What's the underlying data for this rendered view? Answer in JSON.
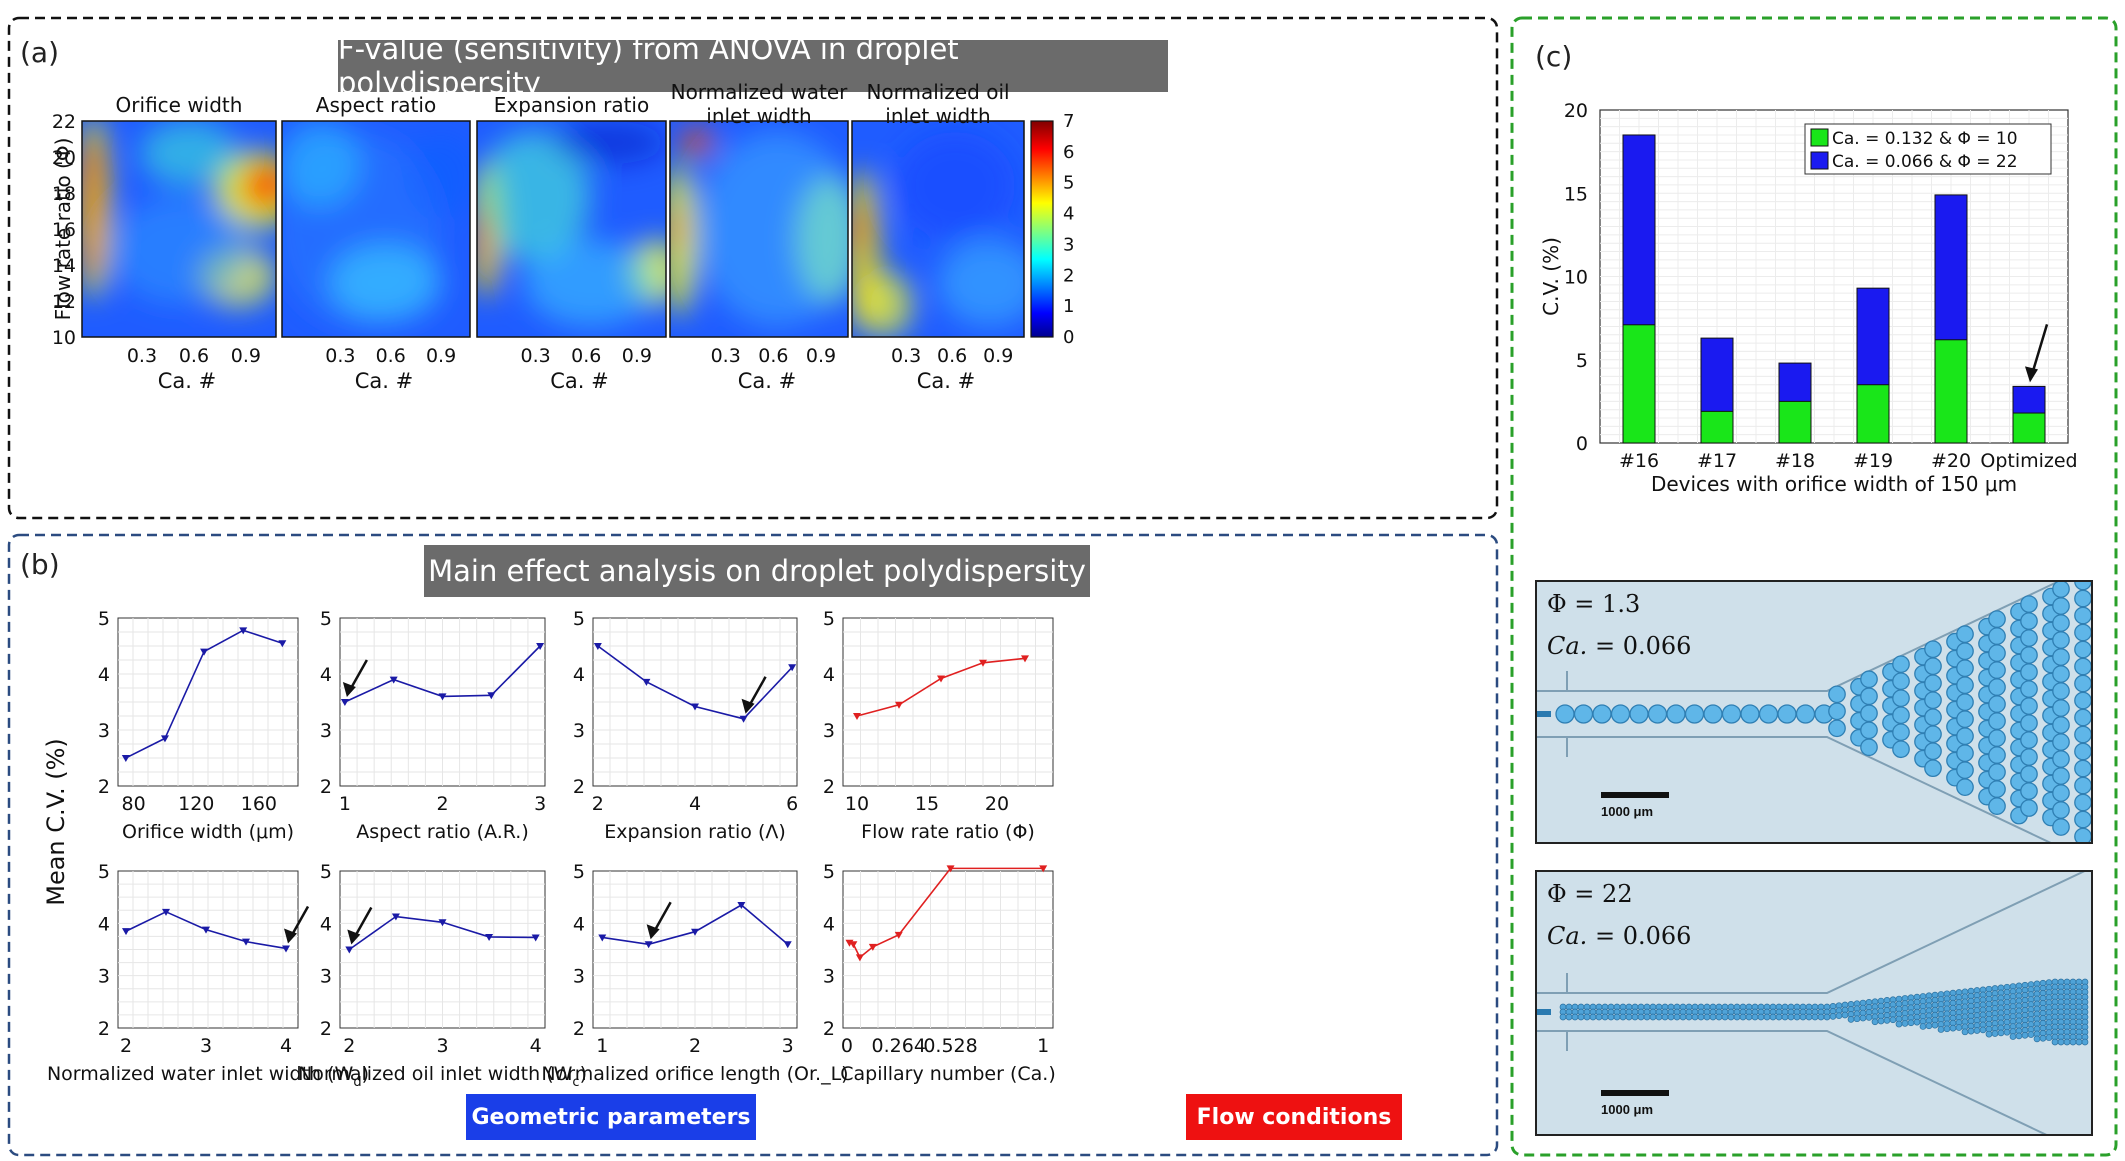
{
  "panels": {
    "a": {
      "label": "(a)",
      "banner": "F-value (sensitivity) from ANOVA in droplet polydispersity",
      "ylabel": "Flow rate ratio (Φ)",
      "xlabel": "Ca. #",
      "yticks": [
        "10",
        "12",
        "14",
        "16",
        "18",
        "20",
        "22"
      ],
      "xticks": [
        "0.3",
        "0.6",
        "0.9"
      ],
      "colorbar_ticks": [
        "0",
        "1",
        "2",
        "3",
        "4",
        "5",
        "6",
        "7"
      ],
      "heatmaps": [
        {
          "title": [
            "Orifice width"
          ]
        },
        {
          "title": [
            "Aspect ratio"
          ]
        },
        {
          "title": [
            "Expansion ratio"
          ]
        },
        {
          "title": [
            "Normalized water",
            "inlet width"
          ]
        },
        {
          "title": [
            "Normalized oil",
            "inlet width"
          ]
        }
      ]
    },
    "b": {
      "label": "(b)",
      "banner": "Main effect analysis on droplet polydispersity",
      "ylabel": "Mean C.V. (%)",
      "tag_geometric": "Geometric parameters",
      "tag_flow": "Flow conditions"
    },
    "c": {
      "label": "(c)",
      "micro1": {
        "phi": "Φ = 1.3",
        "ca_sym": "Ca.",
        "ca_val": "= 0.066",
        "scale": "1000 μm"
      },
      "micro2": {
        "phi": "Φ = 22",
        "ca_sym": "Ca.",
        "ca_val": "= 0.066",
        "scale": "1000 μm"
      }
    }
  },
  "colors": {
    "blue_line": "#1a1aa6",
    "red_line": "#e02020",
    "bar_green": "#19e619",
    "bar_blue": "#1a1af0",
    "tag_blue": "#1a3ee8",
    "tag_red": "#ee1111"
  },
  "chart_data": [
    {
      "type": "line",
      "title": "",
      "xlabel": "Orifice width (μm)",
      "ylabel": "",
      "x": [
        75,
        100,
        125,
        150,
        175
      ],
      "y": [
        2.5,
        2.85,
        4.4,
        4.78,
        4.55
      ],
      "xlim": [
        70,
        185
      ],
      "ylim": [
        2,
        5
      ],
      "xticks": [
        80,
        120,
        160
      ],
      "yticks": [
        2,
        3,
        4,
        5
      ],
      "color": "blue"
    },
    {
      "type": "line",
      "title": "",
      "xlabel": "Aspect ratio (A.R.)",
      "ylabel": "",
      "x": [
        1,
        1.5,
        2,
        2.5,
        3
      ],
      "y": [
        3.5,
        3.9,
        3.6,
        3.62,
        4.5
      ],
      "xlim": [
        0.95,
        3.05
      ],
      "ylim": [
        2,
        5
      ],
      "xticks": [
        1,
        2,
        3
      ],
      "yticks": [
        2,
        3,
        4,
        5
      ],
      "color": "blue"
    },
    {
      "type": "line",
      "title": "",
      "xlabel": "Expansion ratio (Λ)",
      "ylabel": "",
      "x": [
        2,
        3,
        4,
        5,
        6
      ],
      "y": [
        4.5,
        3.86,
        3.42,
        3.2,
        4.12
      ],
      "xlim": [
        1.9,
        6.1
      ],
      "ylim": [
        2,
        5
      ],
      "xticks": [
        2,
        4,
        6
      ],
      "yticks": [
        2,
        3,
        4,
        5
      ],
      "color": "blue"
    },
    {
      "type": "line",
      "title": "",
      "xlabel": "Flow rate ratio (Φ)",
      "ylabel": "",
      "x": [
        10,
        13,
        16,
        19,
        22
      ],
      "y": [
        3.25,
        3.45,
        3.92,
        4.2,
        4.28
      ],
      "xlim": [
        9,
        24
      ],
      "ylim": [
        2,
        5
      ],
      "xticks": [
        10,
        15,
        20
      ],
      "yticks": [
        2,
        3,
        4,
        5
      ],
      "color": "red"
    },
    {
      "type": "line",
      "title": "",
      "xlabel": "Normalized water inlet width (W_d)",
      "ylabel": "",
      "x": [
        2,
        2.5,
        3,
        3.5,
        4
      ],
      "y": [
        3.85,
        4.22,
        3.88,
        3.65,
        3.52
      ],
      "xlim": [
        1.9,
        4.15
      ],
      "ylim": [
        2,
        5
      ],
      "xticks": [
        2,
        3,
        4
      ],
      "yticks": [
        2,
        3,
        4,
        5
      ],
      "color": "blue"
    },
    {
      "type": "line",
      "title": "",
      "xlabel": "Normalized oil inlet width (W_c)",
      "ylabel": "",
      "x": [
        2,
        2.5,
        3,
        3.5,
        4
      ],
      "y": [
        3.5,
        4.13,
        4.02,
        3.74,
        3.73
      ],
      "xlim": [
        1.9,
        4.1
      ],
      "ylim": [
        2,
        5
      ],
      "xticks": [
        2,
        3,
        4
      ],
      "yticks": [
        2,
        3,
        4,
        5
      ],
      "color": "blue"
    },
    {
      "type": "line",
      "title": "",
      "xlabel": "Normalized orifice length (Or._L)",
      "ylabel": "",
      "x": [
        1,
        1.5,
        2,
        2.5,
        3
      ],
      "y": [
        3.73,
        3.6,
        3.84,
        4.35,
        3.6
      ],
      "xlim": [
        0.9,
        3.1
      ],
      "ylim": [
        2,
        5
      ],
      "xticks": [
        1,
        2,
        3
      ],
      "yticks": [
        2,
        3,
        4,
        5
      ],
      "color": "blue"
    },
    {
      "type": "line",
      "title": "",
      "xlabel": "Capillary number (Ca.)",
      "ylabel": "",
      "x": [
        0.013,
        0.033,
        0.066,
        0.132,
        0.264,
        0.528,
        1.0
      ],
      "y": [
        3.63,
        3.6,
        3.35,
        3.55,
        3.78,
        5.05,
        5.05
      ],
      "xlim": [
        -0.02,
        1.05
      ],
      "ylim": [
        2,
        5
      ],
      "xticks": [
        0,
        0.264,
        0.528,
        1
      ],
      "xticklabels": [
        "0",
        "0.264",
        "0.528",
        "1"
      ],
      "yticks": [
        2,
        3,
        4,
        5
      ],
      "color": "red"
    },
    {
      "type": "bar",
      "title": "",
      "xlabel": "Devices with orifice width of 150 μm",
      "ylabel": "C.V. (%)",
      "categories": [
        "#16",
        "#17",
        "#18",
        "#19",
        "#20",
        "Optimized"
      ],
      "series": [
        {
          "name": "Ca. = 0.132 &  Φ = 10",
          "values": [
            7.1,
            1.9,
            2.5,
            3.5,
            6.2,
            1.8
          ]
        },
        {
          "name": "Ca. = 0.066 &  Φ = 22",
          "values": [
            18.5,
            6.3,
            4.8,
            9.3,
            14.9,
            3.4
          ]
        }
      ],
      "ylim": [
        0,
        20
      ],
      "yticks": [
        0,
        5,
        10,
        15,
        20
      ],
      "legend": "top-right",
      "stacked": "overlay"
    }
  ]
}
